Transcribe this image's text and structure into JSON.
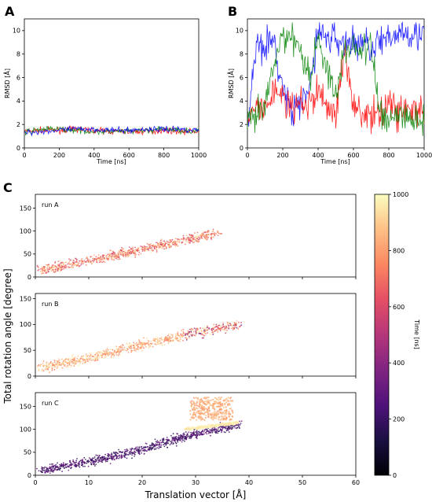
{
  "panel_letters": [
    "A",
    "B",
    "C"
  ],
  "colors": {
    "series_blue": "#0000ff",
    "series_red": "#ff0000",
    "series_green": "#008000",
    "cmap": "magma"
  },
  "chart_data": [
    {
      "panel": "A",
      "type": "line",
      "xlabel": "Time [ns]",
      "ylabel": "RMSD [Å]",
      "xlim": [
        0,
        1000
      ],
      "ylim": [
        0,
        11
      ],
      "xticks": [
        0,
        200,
        400,
        600,
        800,
        1000
      ],
      "yticks": [
        0,
        2,
        4,
        6,
        8,
        10
      ],
      "grid": false,
      "series": [
        {
          "color": "#ff0000",
          "x": [
            0,
            100,
            200,
            300,
            400,
            500,
            600,
            700,
            800,
            900,
            1000
          ],
          "y": [
            1.4,
            1.5,
            1.5,
            1.6,
            1.5,
            1.4,
            1.4,
            1.4,
            1.5,
            1.4,
            1.4
          ]
        },
        {
          "color": "#008000",
          "x": [
            0,
            100,
            200,
            300,
            400,
            500,
            600,
            700,
            800,
            900,
            1000
          ],
          "y": [
            1.3,
            1.6,
            1.6,
            1.5,
            1.4,
            1.4,
            1.4,
            1.5,
            1.6,
            1.5,
            1.4
          ]
        },
        {
          "color": "#0000ff",
          "x": [
            0,
            100,
            200,
            300,
            400,
            500,
            600,
            700,
            800,
            900,
            1000
          ],
          "y": [
            1.3,
            1.4,
            1.5,
            1.6,
            1.6,
            1.5,
            1.5,
            1.6,
            1.6,
            1.6,
            1.5
          ]
        }
      ]
    },
    {
      "panel": "B",
      "type": "line",
      "xlabel": "Time [ns]",
      "ylabel": "RMSD [Å]",
      "xlim": [
        0,
        1000
      ],
      "ylim": [
        0,
        11
      ],
      "xticks": [
        0,
        200,
        400,
        600,
        800,
        1000
      ],
      "yticks": [
        0,
        2,
        4,
        6,
        8,
        10
      ],
      "grid": false,
      "series": [
        {
          "color": "#0000ff",
          "x": [
            0,
            50,
            100,
            150,
            200,
            250,
            300,
            350,
            400,
            450,
            500,
            550,
            600,
            650,
            700,
            750,
            800,
            850,
            900,
            950,
            1000
          ],
          "y": [
            2,
            8.9,
            9,
            8.8,
            5,
            3,
            3.5,
            5,
            10,
            9.4,
            9.2,
            9,
            9,
            9,
            8.7,
            9.1,
            8.9,
            10,
            10,
            9.8,
            9.5
          ]
        },
        {
          "color": "#ff0000",
          "x": [
            0,
            50,
            100,
            150,
            200,
            250,
            300,
            350,
            400,
            450,
            500,
            550,
            600,
            650,
            700,
            750,
            800,
            850,
            900,
            950,
            1000
          ],
          "y": [
            2,
            3.5,
            3,
            5,
            4.5,
            3,
            4,
            3.5,
            5,
            3.5,
            3,
            8,
            4,
            3,
            2.5,
            3,
            4,
            3,
            3.5,
            3,
            3
          ]
        },
        {
          "color": "#008000",
          "x": [
            0,
            50,
            100,
            150,
            200,
            250,
            300,
            350,
            400,
            450,
            500,
            550,
            600,
            650,
            700,
            750,
            800,
            850,
            900,
            950,
            1000
          ],
          "y": [
            2,
            2.5,
            3.5,
            7,
            9.5,
            9.7,
            8.5,
            6,
            9.2,
            7,
            4,
            8.5,
            8.6,
            8.4,
            8.5,
            3,
            2.5,
            3,
            2.5,
            2.5,
            2.5
          ]
        }
      ]
    },
    {
      "panel": "C",
      "type": "scatter",
      "xlabel": "Translation vector [Å]",
      "ylabel": "Total rotation angle [degree]",
      "xlim": [
        0,
        60
      ],
      "xticks": [
        0,
        10,
        20,
        30,
        40,
        50,
        60
      ],
      "colorbar": {
        "label": "Time [ns]",
        "range": [
          0,
          1000
        ],
        "ticks": [
          0,
          200,
          400,
          600,
          800,
          1000
        ],
        "cmap": "magma"
      },
      "subplots": [
        {
          "label": "run A",
          "ylim": [
            0,
            180
          ],
          "yticks": [
            0,
            50,
            100,
            150
          ],
          "trend": {
            "x": [
              1,
              10,
              20,
              30,
              34
            ],
            "y": [
              15,
              35,
              60,
              85,
              95
            ]
          },
          "time": "mixed"
        },
        {
          "label": "run B",
          "ylim": [
            0,
            160
          ],
          "yticks": [
            0,
            50,
            100,
            150
          ],
          "trend": {
            "x": [
              1,
              10,
              20,
              30,
              38
            ],
            "y": [
              15,
              35,
              60,
              85,
              100
            ]
          },
          "time": "mixed"
        },
        {
          "label": "run C",
          "ylim": [
            0,
            180
          ],
          "yticks": [
            0,
            50,
            100,
            150
          ],
          "trend": {
            "x": [
              1,
              10,
              20,
              28,
              38
            ],
            "y": [
              10,
              30,
              55,
              85,
              110
            ]
          },
          "time": "early-purple, late-yellow cluster near (30-38, 100-170)"
        }
      ]
    }
  ]
}
